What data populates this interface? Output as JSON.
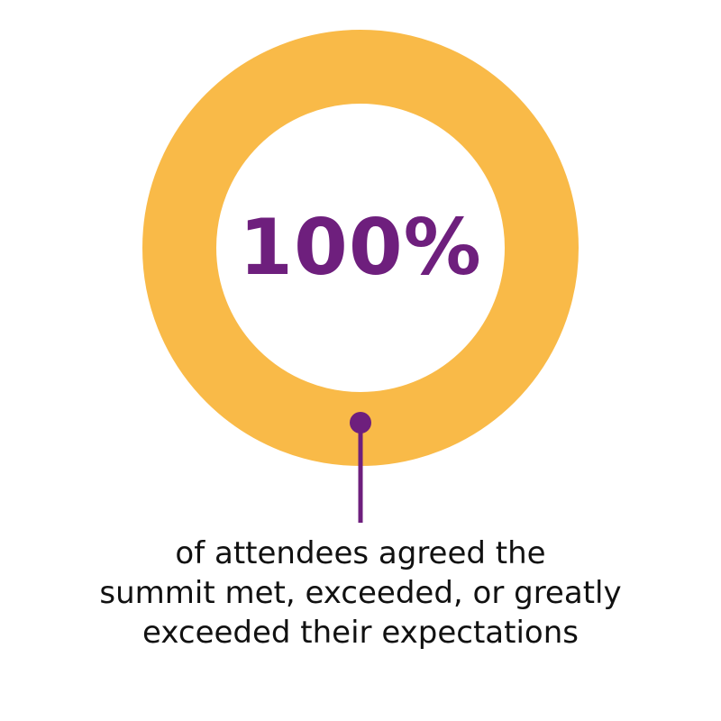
{
  "chart_data": {
    "type": "pie",
    "categories": [
      "agreed"
    ],
    "values": [
      100
    ],
    "value_label": "100%",
    "caption_lines": [
      "of attendees agreed the",
      "summit met, exceeded, or greatly",
      "exceeded their expectations"
    ],
    "legend": "none"
  },
  "colors": {
    "ring": "#F9BA48",
    "accent": "#6E1F7D",
    "caption_text": "#111111",
    "background": "#FFFFFF"
  }
}
